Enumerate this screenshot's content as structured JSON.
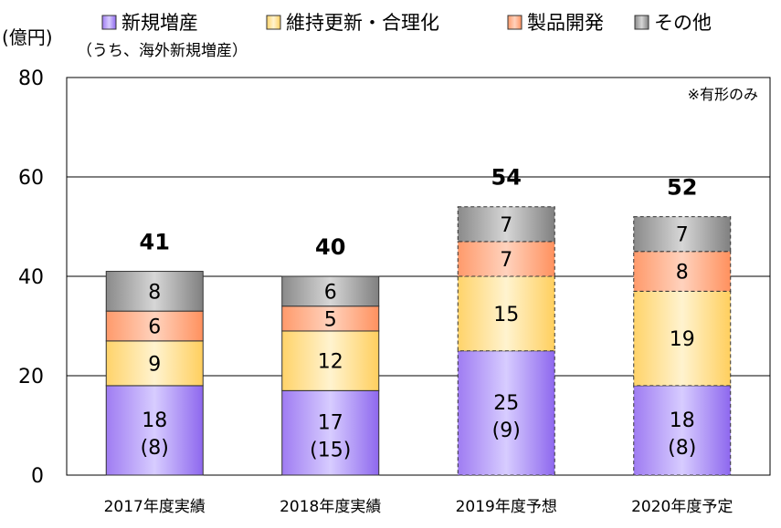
{
  "chart_data": {
    "type": "bar",
    "stacked": true,
    "y_unit": "(億円)",
    "note": "※有形のみ",
    "ylim": [
      0,
      80
    ],
    "yticks": [
      0,
      20,
      40,
      60,
      80
    ],
    "grid": true,
    "legend_position": "top",
    "categories": [
      "2017年度実績",
      "2018年度実績",
      "2019年度予想",
      "2020年度予定"
    ],
    "totals": [
      "41",
      "40",
      "54",
      "52"
    ],
    "dashed_outline": [
      false,
      false,
      true,
      true
    ],
    "series": [
      {
        "name": "新規増産",
        "name_sub": "（うち、海外新規増産）",
        "values": [
          18,
          17,
          25,
          18
        ],
        "labels": [
          "18",
          "17",
          "25",
          "18"
        ],
        "sublabels": [
          "(8)",
          "(15)",
          "(9)",
          "(8)"
        ],
        "color": "#a78bfa"
      },
      {
        "name": "維持更新・合理化",
        "values": [
          9,
          12,
          15,
          19
        ],
        "labels": [
          "9",
          "12",
          "15",
          "19"
        ],
        "color": "#ffd97a"
      },
      {
        "name": "製品開発",
        "values": [
          6,
          5,
          7,
          8
        ],
        "labels": [
          "6",
          "5",
          "7",
          "8"
        ],
        "color": "#ffa27a"
      },
      {
        "name": "その他",
        "values": [
          8,
          6,
          7,
          7
        ],
        "labels": [
          "8",
          "6",
          "7",
          "7"
        ],
        "color": "#9a9a9a"
      }
    ]
  }
}
